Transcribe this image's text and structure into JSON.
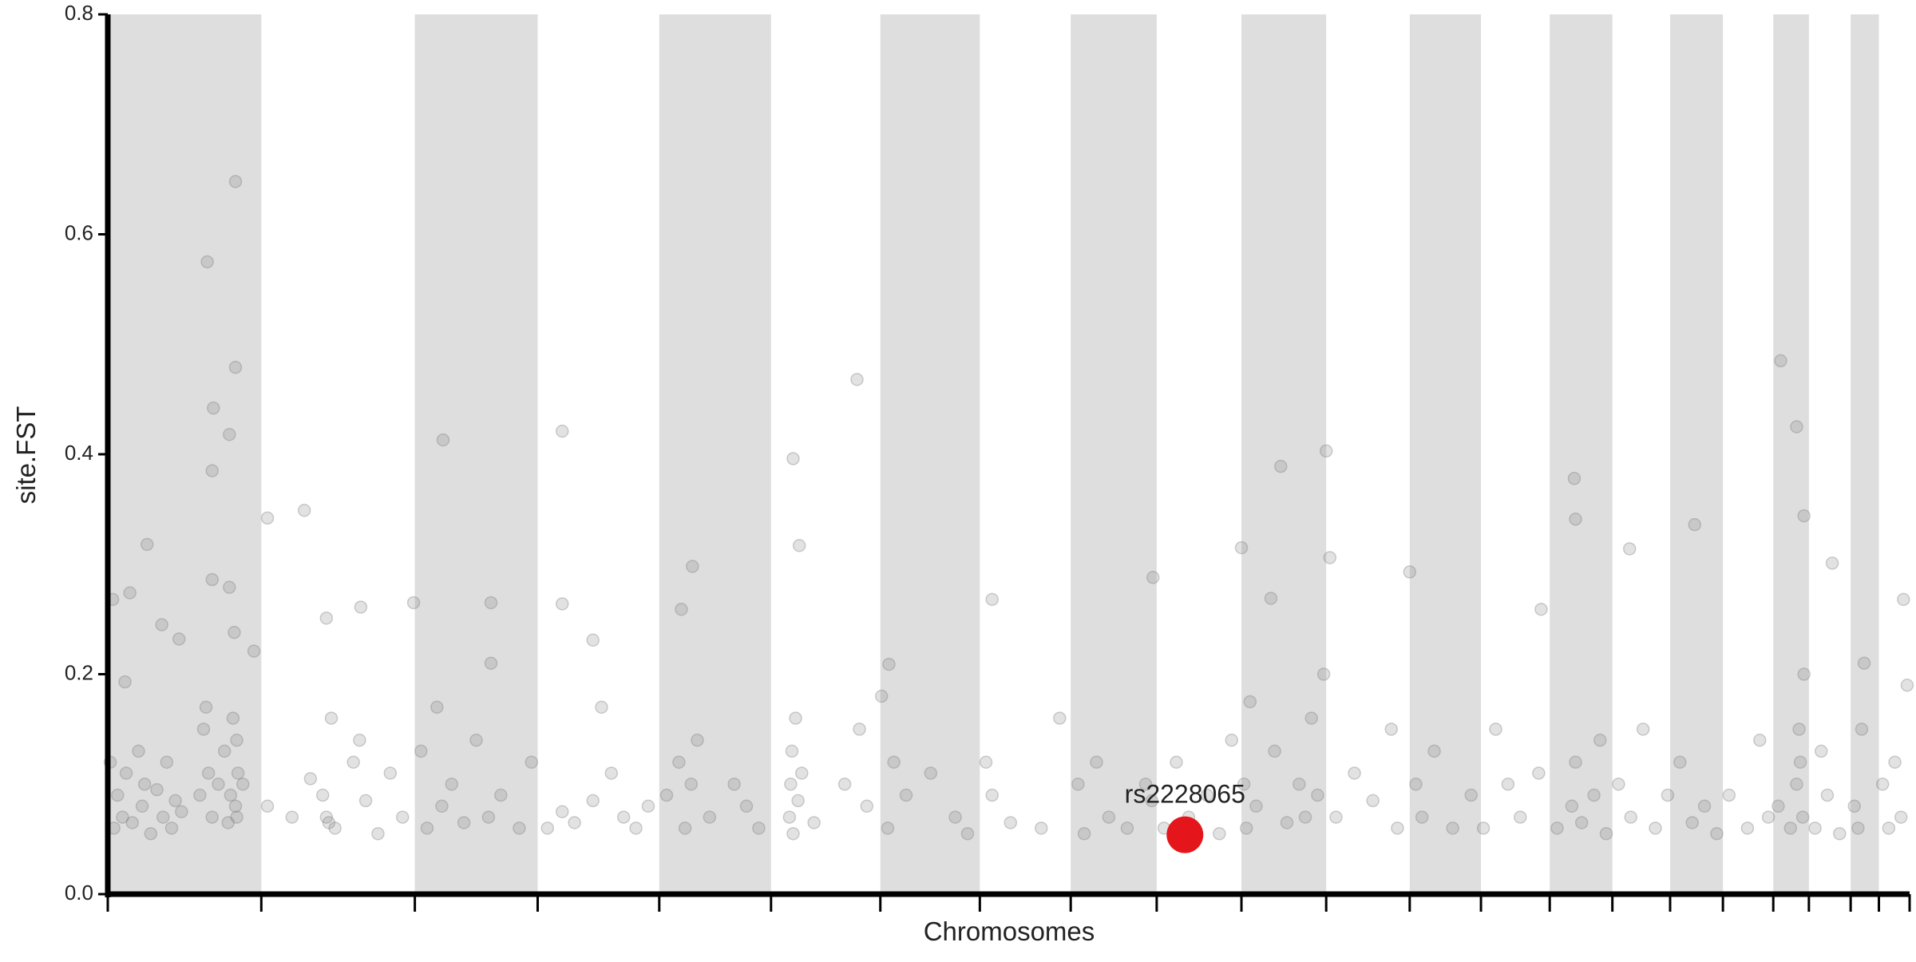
{
  "chart_data": {
    "type": "scatter",
    "xlabel": "Chromosomes",
    "ylabel": "site.FST",
    "xlim": [
      0,
      1467
    ],
    "xticks": [
      0,
      125,
      250,
      350,
      449,
      540,
      629,
      710,
      784,
      854,
      923,
      992,
      1060,
      1118,
      1174,
      1225,
      1272,
      1315,
      1356,
      1385,
      1419,
      1442,
      1467
    ],
    "ylim": [
      0,
      0.8
    ],
    "yticks": [
      {
        "value": 0,
        "label": "0.0"
      },
      0.2,
      0.4,
      0.6,
      0.8
    ],
    "band_color": "#dedede",
    "color": "#7a7a7a",
    "x": [
      104,
      81,
      104,
      86,
      99,
      85,
      85,
      99,
      32,
      4,
      18,
      14,
      44,
      58,
      119,
      103,
      130,
      160,
      178,
      206,
      249,
      273,
      312,
      370,
      370,
      395,
      476,
      467,
      558,
      563,
      610,
      636,
      720,
      851,
      923,
      947,
      955,
      992,
      995,
      1060,
      1194,
      1195,
      1167,
      1239,
      1292,
      1362,
      1375,
      1381,
      1404,
      1462,
      2,
      5,
      8,
      12,
      15,
      20,
      25,
      28,
      30,
      35,
      40,
      45,
      48,
      52,
      55,
      60,
      75,
      78,
      80,
      82,
      85,
      90,
      95,
      98,
      100,
      102,
      104,
      105,
      105,
      106,
      110,
      130,
      150,
      165,
      175,
      178,
      180,
      182,
      185,
      200,
      205,
      210,
      220,
      230,
      240,
      255,
      260,
      268,
      272,
      280,
      290,
      300,
      310,
      312,
      320,
      335,
      345,
      358,
      370,
      380,
      395,
      402,
      410,
      420,
      430,
      440,
      455,
      465,
      470,
      475,
      480,
      490,
      510,
      520,
      530,
      555,
      556,
      557,
      558,
      560,
      562,
      565,
      575,
      600,
      612,
      618,
      630,
      635,
      640,
      650,
      670,
      690,
      700,
      715,
      720,
      735,
      760,
      775,
      790,
      795,
      805,
      815,
      830,
      845,
      850,
      860,
      870,
      880,
      895,
      905,
      915,
      925,
      927,
      930,
      935,
      950,
      960,
      970,
      975,
      980,
      985,
      990,
      1000,
      1015,
      1030,
      1045,
      1050,
      1065,
      1070,
      1080,
      1095,
      1110,
      1120,
      1130,
      1140,
      1150,
      1165,
      1180,
      1192,
      1195,
      1200,
      1210,
      1215,
      1220,
      1230,
      1240,
      1250,
      1260,
      1270,
      1280,
      1290,
      1300,
      1310,
      1320,
      1335,
      1345,
      1352,
      1360,
      1370,
      1375,
      1377,
      1378,
      1380,
      1381,
      1390,
      1395,
      1400,
      1410,
      1422,
      1425,
      1428,
      1430,
      1445,
      1450,
      1455,
      1460,
      1465
    ],
    "values": [
      0.648,
      0.575,
      0.479,
      0.442,
      0.418,
      0.385,
      0.286,
      0.279,
      0.318,
      0.268,
      0.274,
      0.193,
      0.245,
      0.232,
      0.221,
      0.238,
      0.342,
      0.349,
      0.251,
      0.261,
      0.265,
      0.413,
      0.265,
      0.421,
      0.264,
      0.231,
      0.298,
      0.259,
      0.396,
      0.317,
      0.468,
      0.209,
      0.268,
      0.288,
      0.315,
      0.269,
      0.389,
      0.403,
      0.306,
      0.293,
      0.378,
      0.341,
      0.259,
      0.314,
      0.336,
      0.485,
      0.425,
      0.344,
      0.301,
      0.268,
      0.12,
      0.06,
      0.09,
      0.07,
      0.11,
      0.065,
      0.13,
      0.08,
      0.1,
      0.055,
      0.095,
      0.07,
      0.12,
      0.06,
      0.085,
      0.075,
      0.09,
      0.15,
      0.17,
      0.11,
      0.07,
      0.1,
      0.13,
      0.065,
      0.09,
      0.16,
      0.08,
      0.07,
      0.14,
      0.11,
      0.1,
      0.08,
      0.07,
      0.105,
      0.09,
      0.07,
      0.065,
      0.16,
      0.06,
      0.12,
      0.14,
      0.085,
      0.055,
      0.11,
      0.07,
      0.13,
      0.06,
      0.17,
      0.08,
      0.1,
      0.065,
      0.14,
      0.07,
      0.21,
      0.09,
      0.06,
      0.12,
      0.06,
      0.075,
      0.065,
      0.085,
      0.17,
      0.11,
      0.07,
      0.06,
      0.08,
      0.09,
      0.12,
      0.06,
      0.1,
      0.14,
      0.07,
      0.1,
      0.08,
      0.06,
      0.07,
      0.1,
      0.13,
      0.055,
      0.16,
      0.085,
      0.11,
      0.065,
      0.1,
      0.15,
      0.08,
      0.18,
      0.06,
      0.12,
      0.09,
      0.11,
      0.07,
      0.055,
      0.12,
      0.09,
      0.065,
      0.06,
      0.16,
      0.1,
      0.055,
      0.12,
      0.07,
      0.06,
      0.1,
      0.085,
      0.06,
      0.12,
      0.07,
      0.09,
      0.055,
      0.14,
      0.1,
      0.06,
      0.175,
      0.08,
      0.13,
      0.065,
      0.1,
      0.07,
      0.16,
      0.09,
      0.2,
      0.07,
      0.11,
      0.085,
      0.15,
      0.06,
      0.1,
      0.07,
      0.13,
      0.06,
      0.09,
      0.06,
      0.15,
      0.1,
      0.07,
      0.11,
      0.06,
      0.08,
      0.12,
      0.065,
      0.09,
      0.14,
      0.055,
      0.1,
      0.07,
      0.15,
      0.06,
      0.09,
      0.12,
      0.065,
      0.08,
      0.055,
      0.09,
      0.06,
      0.14,
      0.07,
      0.08,
      0.06,
      0.1,
      0.15,
      0.12,
      0.07,
      0.2,
      0.06,
      0.13,
      0.09,
      0.055,
      0.08,
      0.06,
      0.15,
      0.21,
      0.1,
      0.06,
      0.12,
      0.07,
      0.19
    ],
    "highlight": {
      "label": "rs2228065",
      "x": 877,
      "value": 0.054,
      "color": "#e5161b"
    }
  }
}
